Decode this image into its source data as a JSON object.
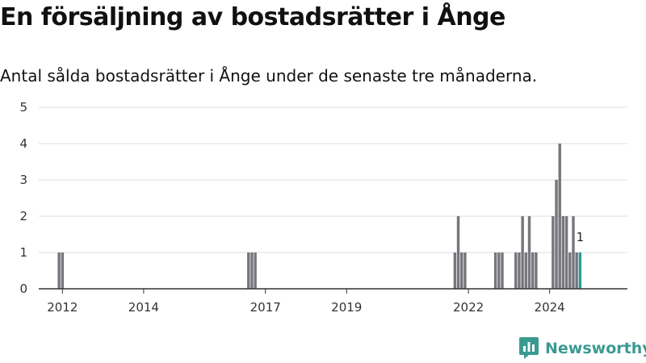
{
  "chart_data": {
    "type": "bar",
    "title": "En försäljning av bostadsrätter i Ånge",
    "subtitle": "Antal sålda bostadsrätter i Ånge under de senaste tre månaderna.",
    "xlabel": "",
    "ylabel": "",
    "x_ticks": [
      2012,
      2014,
      2017,
      2019,
      2022,
      2024
    ],
    "xlim": [
      "2011-06",
      "2025-12"
    ],
    "ylim": [
      0,
      5
    ],
    "y_ticks": [
      0,
      1,
      2,
      3,
      4,
      5
    ],
    "grid": "horizontal",
    "colors": {
      "bar": "#77767d",
      "latest": "#2a9d8f",
      "grid": "#dddddd",
      "axis": "#333333"
    },
    "points": [
      {
        "x": "2011-12",
        "y": 1
      },
      {
        "x": "2012-01",
        "y": 1
      },
      {
        "x": "2016-08",
        "y": 1
      },
      {
        "x": "2016-09",
        "y": 1
      },
      {
        "x": "2016-10",
        "y": 1
      },
      {
        "x": "2021-09",
        "y": 1
      },
      {
        "x": "2021-10",
        "y": 2
      },
      {
        "x": "2021-11",
        "y": 1
      },
      {
        "x": "2021-12",
        "y": 1
      },
      {
        "x": "2022-09",
        "y": 1
      },
      {
        "x": "2022-10",
        "y": 1
      },
      {
        "x": "2022-11",
        "y": 1
      },
      {
        "x": "2023-03",
        "y": 1
      },
      {
        "x": "2023-04",
        "y": 1
      },
      {
        "x": "2023-05",
        "y": 2
      },
      {
        "x": "2023-06",
        "y": 1
      },
      {
        "x": "2023-07",
        "y": 2
      },
      {
        "x": "2023-08",
        "y": 1
      },
      {
        "x": "2023-09",
        "y": 1
      },
      {
        "x": "2024-02",
        "y": 2
      },
      {
        "x": "2024-03",
        "y": 3
      },
      {
        "x": "2024-04",
        "y": 4
      },
      {
        "x": "2024-05",
        "y": 2
      },
      {
        "x": "2024-06",
        "y": 2
      },
      {
        "x": "2024-07",
        "y": 1
      },
      {
        "x": "2024-08",
        "y": 2
      },
      {
        "x": "2024-09",
        "y": 1
      },
      {
        "x": "2024-10",
        "y": 1
      }
    ],
    "data_labels": [
      {
        "x": "2024-10",
        "text": "1"
      }
    ]
  },
  "branding": {
    "name": "Newsworthy",
    "icon": "newsworthy-logo-icon"
  }
}
